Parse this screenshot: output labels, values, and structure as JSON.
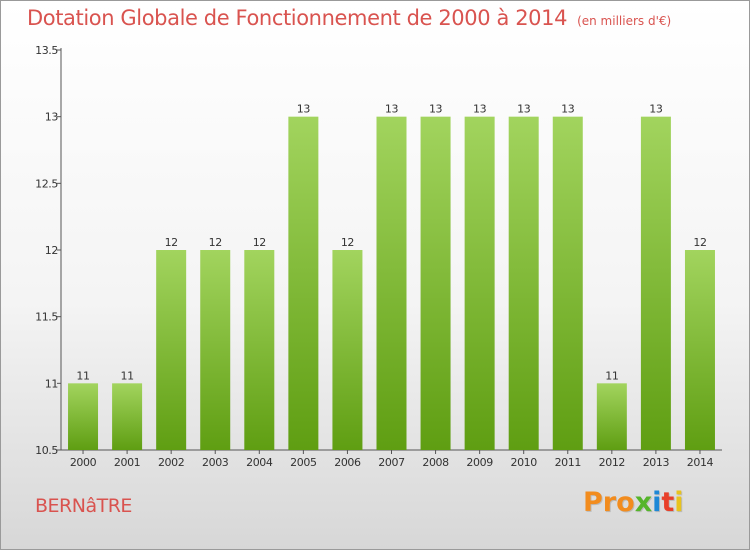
{
  "title": "Dotation Globale de Fonctionnement de 2000 à 2014",
  "subtitle": "(en milliers d'€)",
  "commune": "BERNâTRE",
  "logo": {
    "letters": [
      "P",
      "r",
      "o",
      "x",
      "i",
      "t",
      "i"
    ],
    "colors": [
      "#f28c1e",
      "#f28c1e",
      "#f28c1e",
      "#55b52a",
      "#1e88d6",
      "#e8402a",
      "#e8c31e"
    ]
  },
  "colors": {
    "title": "#d9534f",
    "bar_top": "#a2d45e",
    "bar_bottom": "#5f9e12"
  },
  "chart_data": {
    "type": "bar",
    "categories": [
      "2000",
      "2001",
      "2002",
      "2003",
      "2004",
      "2005",
      "2006",
      "2007",
      "2008",
      "2009",
      "2010",
      "2011",
      "2012",
      "2013",
      "2014"
    ],
    "values": [
      11,
      11,
      12,
      12,
      12,
      13,
      12,
      13,
      13,
      13,
      13,
      13,
      11,
      13,
      12
    ],
    "data_labels": [
      "11",
      "11",
      "12",
      "12",
      "12",
      "13",
      "12",
      "13",
      "13",
      "13",
      "13",
      "13",
      "11",
      "13",
      "12"
    ],
    "ylim": [
      10.5,
      13.5
    ],
    "yticks": [
      10.5,
      11,
      11.5,
      12,
      12.5,
      13,
      13.5
    ],
    "ytick_labels": [
      "10.5",
      "11",
      "11.5",
      "12",
      "12.5",
      "13",
      "13.5"
    ],
    "grid": false,
    "legend": "none"
  }
}
